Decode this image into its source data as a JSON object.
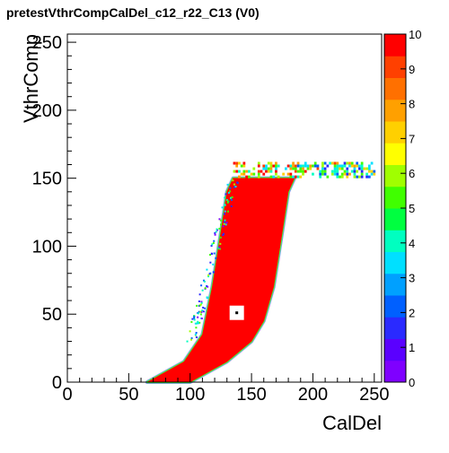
{
  "title": "pretestVthrCompCalDel_c12_r22_C13 (V0)",
  "chart_data": {
    "type": "heatmap",
    "title": "pretestVthrCompCalDel_c12_r22_C13 (V0)",
    "xlabel": "CalDel",
    "ylabel": "VthrComp",
    "xlim": [
      0,
      256
    ],
    "ylim": [
      0,
      256
    ],
    "x_ticks": [
      0,
      50,
      100,
      150,
      200,
      250
    ],
    "y_ticks": [
      0,
      50,
      100,
      150,
      200,
      250
    ],
    "z_range": [
      0,
      10
    ],
    "z_ticks": [
      0,
      1,
      2,
      3,
      4,
      5,
      6,
      7,
      8,
      9,
      10
    ],
    "colormap": "rainbow",
    "grid": false,
    "saturated_region": {
      "value": 10,
      "left_boundary": [
        [
          65,
          0
        ],
        [
          95,
          15
        ],
        [
          110,
          35
        ],
        [
          118,
          70
        ],
        [
          125,
          110
        ],
        [
          130,
          140
        ],
        [
          135,
          150
        ]
      ],
      "right_boundary": [
        [
          100,
          0
        ],
        [
          130,
          15
        ],
        [
          150,
          30
        ],
        [
          160,
          45
        ],
        [
          168,
          70
        ],
        [
          175,
          110
        ],
        [
          180,
          140
        ],
        [
          185,
          150
        ]
      ]
    },
    "plateau": {
      "x": [
        135,
        250
      ],
      "y": [
        150,
        160
      ],
      "values": "mixed, up to 10"
    },
    "hole": {
      "x": 138,
      "y": 51,
      "value": 0
    }
  }
}
